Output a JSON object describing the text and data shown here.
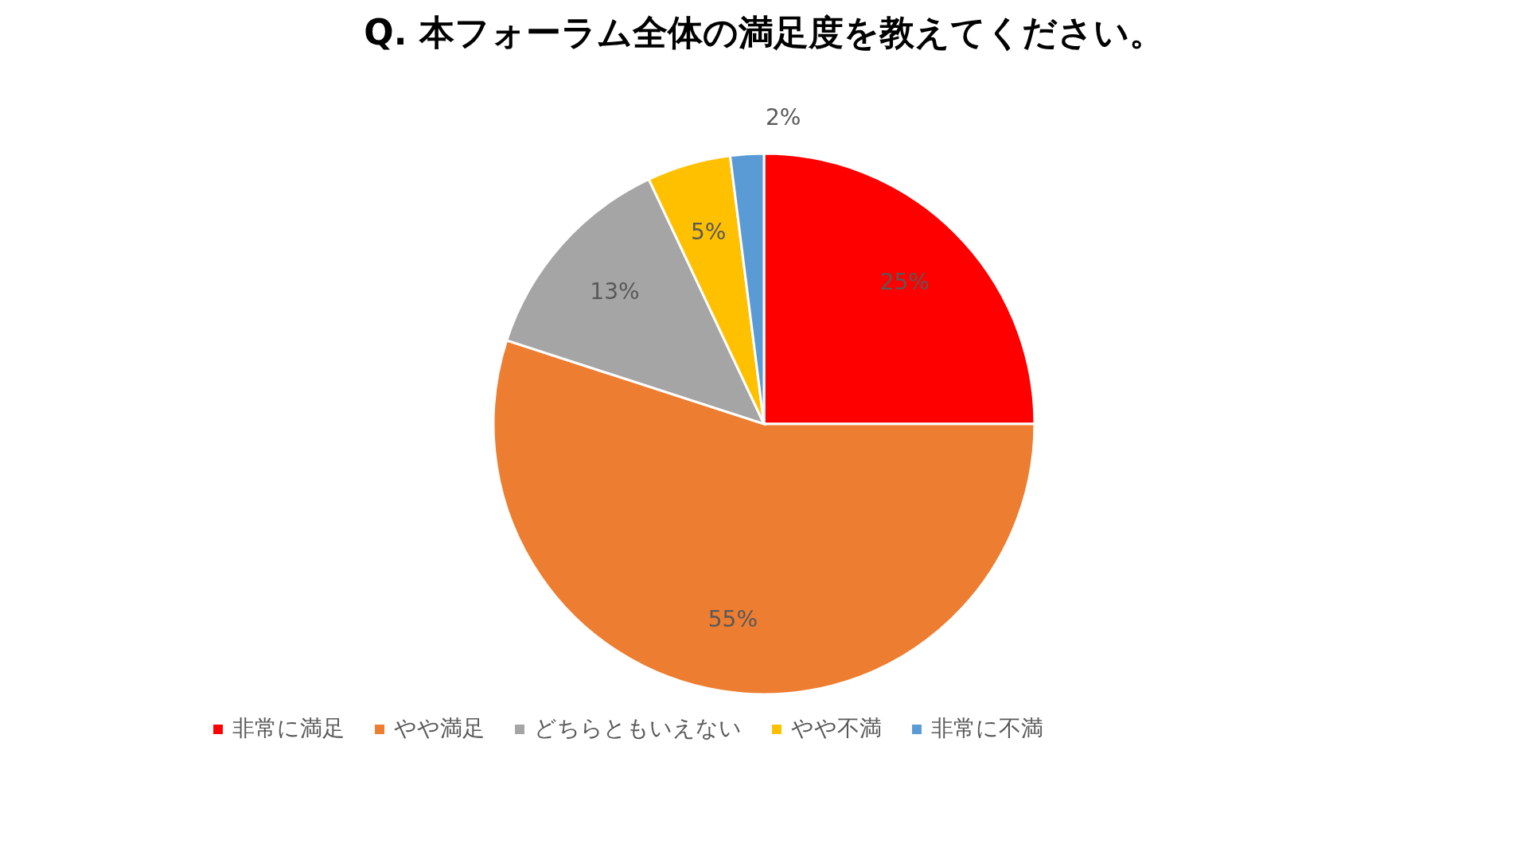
{
  "chart_data": {
    "type": "pie",
    "title": "Q.  本フォーラム全体の満足度を教えてください。",
    "categories": [
      "非常に満足",
      "やや満足",
      "どちらともいえない",
      "やや不満",
      "非常に不満"
    ],
    "values": [
      25,
      55,
      13,
      5,
      2
    ],
    "colors": [
      "#ff0000",
      "#ed7d31",
      "#a5a5a5",
      "#ffc000",
      "#5b9bd5"
    ],
    "value_labels": [
      "25%",
      "55%",
      "13%",
      "5%",
      "2%"
    ],
    "legend": "bottom"
  }
}
